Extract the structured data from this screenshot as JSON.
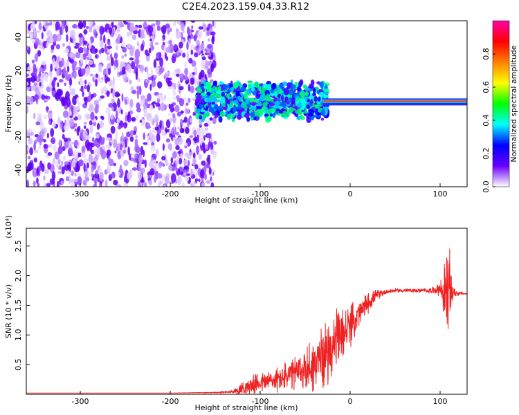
{
  "figure": {
    "title": "C2E4.2023.159.04.33.R12"
  },
  "chart_data": [
    {
      "type": "heatmap",
      "xlabel": "Height of straight line (km)",
      "ylabel": "Frequency (Hz)",
      "xlim": [
        -360,
        130
      ],
      "ylim": [
        -50,
        50
      ],
      "xticks": [
        -300,
        -200,
        -100,
        0,
        100
      ],
      "yticks": [
        -40,
        -20,
        0,
        20,
        40
      ],
      "colorbar": {
        "label": "Normalized spectral amplitude",
        "range": [
          0,
          1
        ],
        "ticks": [
          "0.0",
          "0.2",
          "0.4",
          "0.6",
          "0.8"
        ],
        "tick_values": [
          0.0,
          0.2,
          0.4,
          0.6,
          0.8
        ],
        "colors": [
          "#ffffff",
          "#6a00ff",
          "#0000ff",
          "#00ffff",
          "#00ff00",
          "#ffff00",
          "#ff8000",
          "#ff0000",
          "#ff00aa"
        ]
      },
      "regions": [
        {
          "name": "noise",
          "x": [
            -360,
            -150
          ],
          "f": [
            -50,
            50
          ],
          "level": 0.1
        },
        {
          "name": "band",
          "x": [
            -170,
            -25
          ],
          "f": [
            -12,
            12
          ],
          "level": 0.35
        },
        {
          "name": "tone",
          "x": [
            -30,
            130
          ],
          "f": [
            0,
            3
          ],
          "level": 0.85
        }
      ],
      "grid": false
    },
    {
      "type": "line",
      "xlabel": "Height of straight line (km)",
      "ylabel": "SNR (10 * v/v)",
      "y_multiplier": "(x10⁴)",
      "xlim": [
        -360,
        130
      ],
      "ylim": [
        0,
        2.8
      ],
      "xticks": [
        -300,
        -200,
        -100,
        0,
        100
      ],
      "yticks": [
        0.5,
        1.0,
        1.5,
        2.0,
        2.5
      ],
      "ytick_labels": [
        "0.5",
        "1.0",
        "1.5",
        "2.0",
        "2.5"
      ],
      "color": "#ee2222",
      "series": [
        {
          "x": [
            -360,
            -300,
            -200,
            -150,
            -130,
            -120,
            -100,
            -80,
            -60,
            -40,
            -30,
            -20,
            -10,
            0,
            10,
            20,
            30,
            40,
            50,
            60,
            70,
            80,
            90,
            95,
            100,
            105,
            108,
            110,
            112,
            115,
            120,
            125,
            130
          ],
          "y": [
            0.02,
            0.02,
            0.02,
            0.03,
            0.04,
            0.1,
            0.2,
            0.25,
            0.35,
            0.5,
            0.65,
            0.8,
            1.0,
            1.15,
            1.35,
            1.55,
            1.68,
            1.73,
            1.75,
            1.75,
            1.75,
            1.75,
            1.75,
            1.76,
            1.78,
            1.7,
            1.72,
            1.78,
            1.74,
            1.72,
            1.7,
            1.7,
            1.69
          ],
          "noise": [
            0.0,
            0.0,
            0.0,
            0.01,
            0.03,
            0.15,
            0.2,
            0.25,
            0.35,
            0.55,
            0.6,
            0.6,
            0.55,
            0.4,
            0.3,
            0.2,
            0.1,
            0.05,
            0.04,
            0.04,
            0.04,
            0.04,
            0.06,
            0.08,
            0.15,
            0.6,
            1.1,
            0.8,
            0.5,
            0.1,
            0.05,
            0.03,
            0.02
          ]
        }
      ],
      "grid": false
    }
  ]
}
